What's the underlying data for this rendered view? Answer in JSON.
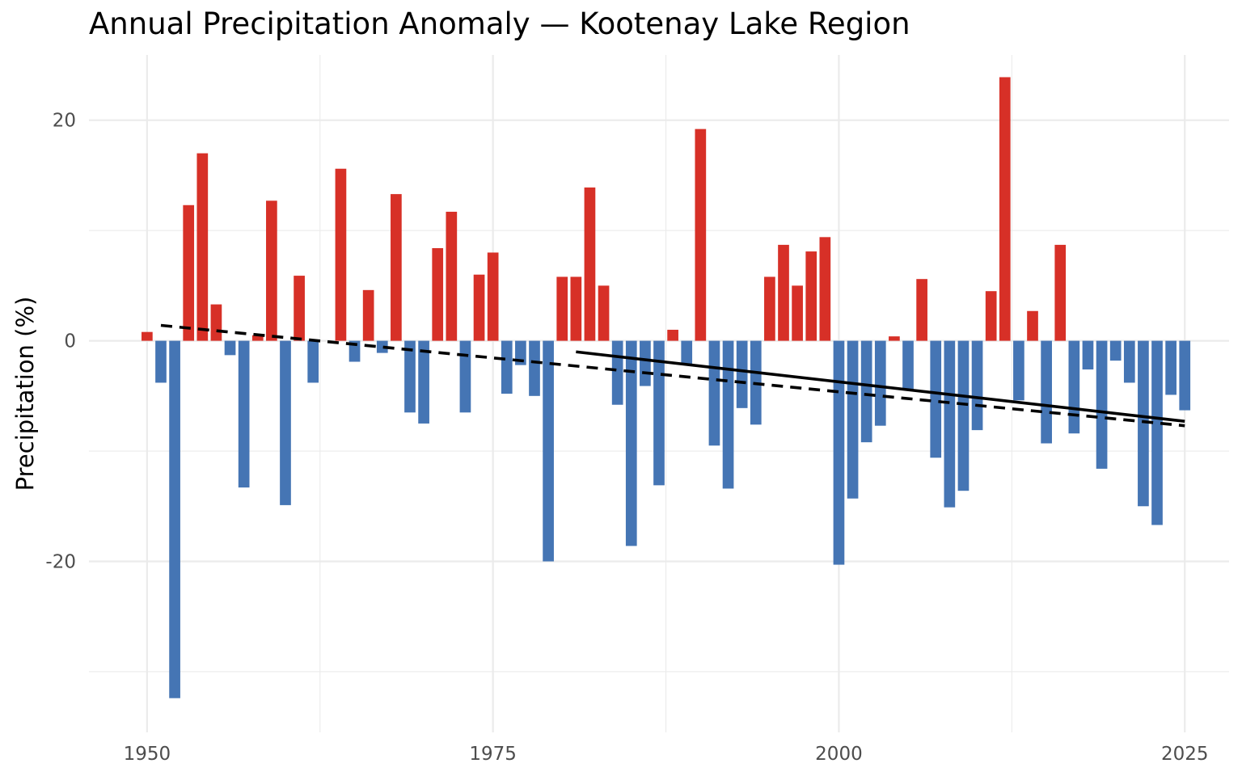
{
  "chart_data": {
    "type": "bar",
    "title": "Annual Precipitation Anomaly — Kootenay Lake Region",
    "xlabel": "",
    "ylabel": "Precipitation (%)",
    "xlim": [
      1945.8,
      2028.2
    ],
    "ylim": [
      -35.5,
      26.5
    ],
    "x_ticks": [
      1950,
      1975,
      2000,
      2025
    ],
    "x_tick_labels": [
      "1950",
      "1975",
      "2000",
      "2025"
    ],
    "y_ticks": [
      -20,
      0,
      20
    ],
    "y_tick_labels": [
      "-20",
      "0",
      "20"
    ],
    "grid": true,
    "legend": "none",
    "colors": {
      "positive": "#d73027",
      "negative": "#4575b4",
      "trend": "#000000"
    },
    "x": [
      1950,
      1951,
      1952,
      1953,
      1954,
      1955,
      1956,
      1957,
      1958,
      1959,
      1960,
      1961,
      1962,
      1963,
      1964,
      1965,
      1966,
      1967,
      1968,
      1969,
      1970,
      1971,
      1972,
      1973,
      1974,
      1975,
      1976,
      1977,
      1978,
      1979,
      1980,
      1981,
      1982,
      1983,
      1984,
      1985,
      1986,
      1987,
      1988,
      1989,
      1990,
      1991,
      1992,
      1993,
      1994,
      1995,
      1996,
      1997,
      1998,
      1999,
      2000,
      2001,
      2002,
      2003,
      2004,
      2005,
      2006,
      2007,
      2008,
      2009,
      2010,
      2011,
      2012,
      2013,
      2014,
      2015,
      2016,
      2017,
      2018,
      2019,
      2020,
      2021,
      2022,
      2023,
      2024,
      2025
    ],
    "values": [
      0.8,
      -3.8,
      -32.4,
      12.3,
      17.0,
      3.3,
      -1.3,
      -13.3,
      0.5,
      12.7,
      -14.9,
      5.9,
      -3.8,
      0.0,
      15.6,
      -1.9,
      4.6,
      -1.1,
      13.3,
      -6.5,
      -7.5,
      8.4,
      11.7,
      -6.5,
      6.0,
      8.0,
      -4.8,
      -2.2,
      -5.0,
      -20.0,
      5.8,
      5.8,
      13.9,
      5.0,
      -5.8,
      -18.6,
      -4.1,
      -13.1,
      1.0,
      -2.2,
      19.2,
      -9.5,
      -13.4,
      -6.1,
      -7.6,
      5.8,
      8.7,
      5.0,
      8.1,
      9.4,
      -20.3,
      -14.3,
      -9.2,
      -7.7,
      0.4,
      -4.4,
      5.6,
      -10.6,
      -15.1,
      -13.6,
      -8.1,
      4.5,
      23.9,
      -5.4,
      2.7,
      -9.3,
      8.7,
      -8.4,
      -2.6,
      -11.6,
      -1.8,
      -3.8,
      -15.0,
      -16.7,
      -4.9,
      -6.3
    ],
    "trend_lines": [
      {
        "style": "dashed",
        "x": [
          1951,
          2025
        ],
        "y": [
          1.4,
          -7.7
        ]
      },
      {
        "style": "solid",
        "x": [
          1981,
          2025
        ],
        "y": [
          -1.0,
          -7.3
        ]
      }
    ]
  }
}
